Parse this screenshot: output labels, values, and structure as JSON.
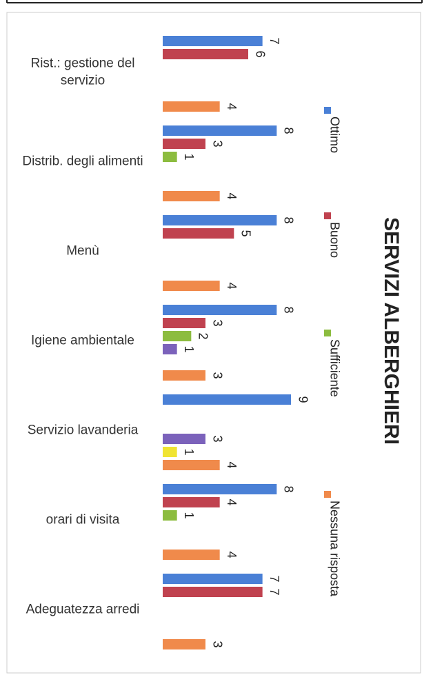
{
  "chart_data": {
    "type": "hbar",
    "title": "SERVIZI ALBERGHIERI",
    "categories": [
      "Rist.: gestione del servizio",
      "Distrib. degli alimenti",
      "Menù",
      "Igiene ambientale",
      "Servizio lavanderia",
      "orari di visita",
      "Adeguatezza arredi"
    ],
    "series": [
      {
        "name": "Ottimo",
        "color": "#4a80d6",
        "values": [
          7,
          8,
          8,
          8,
          9,
          8,
          7
        ]
      },
      {
        "name": "Buono",
        "color": "#c0424f",
        "values": [
          6,
          3,
          5,
          3,
          null,
          4,
          7
        ]
      },
      {
        "name": "Sufficiente",
        "color": "#8cbc3f",
        "values": [
          null,
          1,
          null,
          2,
          null,
          1,
          null
        ]
      },
      {
        "color": "#7b62bb",
        "values": [
          null,
          null,
          null,
          1,
          3,
          null,
          null
        ]
      },
      {
        "color": "#f0e433",
        "values": [
          null,
          null,
          null,
          null,
          1,
          null,
          null
        ]
      },
      {
        "name": "Nessuna risposta",
        "color": "#f08a4b",
        "values": [
          4,
          4,
          4,
          3,
          4,
          4,
          3
        ]
      }
    ]
  }
}
